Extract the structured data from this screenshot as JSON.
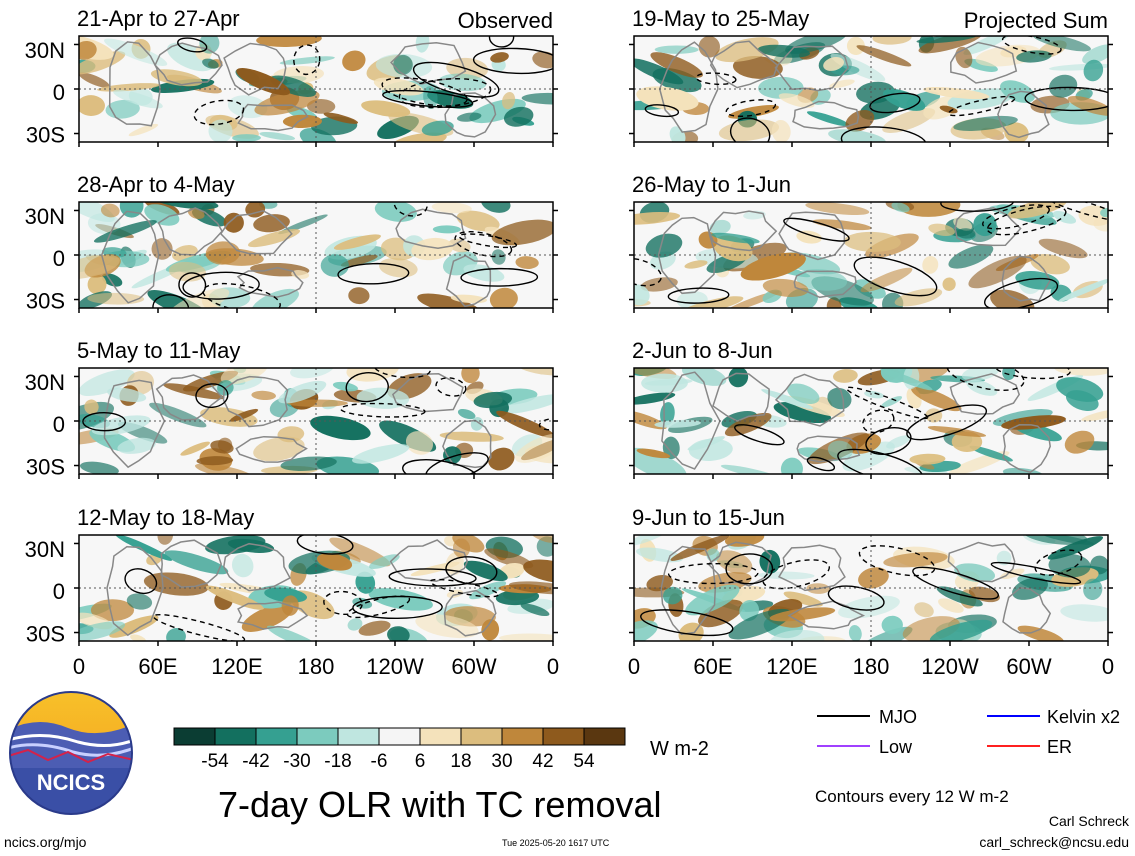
{
  "panels_left": [
    {
      "period": "21-Apr to 27-Apr",
      "tag": "Observed"
    },
    {
      "period": "28-Apr to 4-May",
      "tag": ""
    },
    {
      "period": "5-May to 11-May",
      "tag": ""
    },
    {
      "period": "12-May to 18-May",
      "tag": ""
    }
  ],
  "panels_right": [
    {
      "period": "19-May to 25-May",
      "tag": "Projected Sum"
    },
    {
      "period": "26-May to 1-Jun",
      "tag": ""
    },
    {
      "period": "2-Jun to 8-Jun",
      "tag": ""
    },
    {
      "period": "9-Jun to 15-Jun",
      "tag": ""
    }
  ],
  "lat_labels": [
    "30N",
    "0",
    "30S"
  ],
  "lon_labels": [
    "0",
    "60E",
    "120E",
    "180",
    "120W",
    "60W",
    "0"
  ],
  "colorbar": {
    "tick_labels": [
      "-54",
      "-42",
      "-30",
      "-18",
      "-6",
      "6",
      "18",
      "30",
      "42",
      "54"
    ],
    "colors": [
      "#0b3d33",
      "#13705f",
      "#35a091",
      "#7ccbbe",
      "#bfe6e0",
      "#f5f5f5",
      "#f4e2bb",
      "#dcbd7e",
      "#bf873b",
      "#8e5a1d",
      "#5a3710"
    ],
    "units": "W m-2"
  },
  "legend": {
    "items": [
      {
        "label": "MJO",
        "color": "#000000"
      },
      {
        "label": "Kelvin x2",
        "color": "#0000ff"
      },
      {
        "label": "Low",
        "color": "#a040ff"
      },
      {
        "label": "ER",
        "color": "#ff2020"
      }
    ],
    "contour_note": "Contours every 12 W m-2"
  },
  "logo": {
    "text": "NCICS"
  },
  "main_title": "7-day OLR with TC removal",
  "footer": {
    "site": "ncics.org/mjo",
    "timestamp": "Tue 2025-05-20 1617 UTC",
    "author": "Carl Schreck",
    "email": "carl_schreck@ncsu.edu"
  }
}
